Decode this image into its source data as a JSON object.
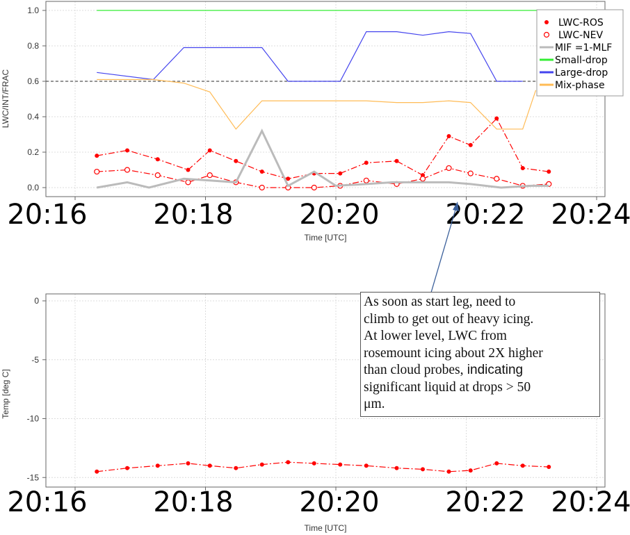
{
  "chart_data": [
    {
      "type": "line",
      "xlabel": "Time [UTC]",
      "ylabel": "LWC/INT/FRAC",
      "xlim": [
        "20:16",
        "20:24"
      ],
      "ylim": [
        0.0,
        1.0
      ],
      "x_ticks": [
        "20:16",
        "20:18",
        "20:20",
        "20:22",
        "20:24"
      ],
      "y_ticks": [
        "0.0",
        "0.2",
        "0.4",
        "0.6",
        "0.8",
        "1.0"
      ],
      "reference_line": 0.6,
      "legend_position": "top-right",
      "series": [
        {
          "name": "LWC-ROS",
          "color": "#ff0000",
          "marker": "filled-circle",
          "style": "dash-dot",
          "x": [
            "20:16:20",
            "20:16:48",
            "20:17:16",
            "20:17:44",
            "20:18:04",
            "20:18:28",
            "20:18:52",
            "20:19:16",
            "20:19:40",
            "20:20:04",
            "20:20:28",
            "20:20:56",
            "20:21:20",
            "20:21:44",
            "20:22:04",
            "20:22:28",
            "20:22:52",
            "20:23:16"
          ],
          "values": [
            0.18,
            0.21,
            0.16,
            0.1,
            0.21,
            0.15,
            0.09,
            0.05,
            0.08,
            0.08,
            0.14,
            0.15,
            0.07,
            0.29,
            0.24,
            0.39,
            0.11,
            0.09
          ]
        },
        {
          "name": "LWC-NEV",
          "color": "#ff0000",
          "marker": "open-circle",
          "style": "dash-dot",
          "x": [
            "20:16:20",
            "20:16:48",
            "20:17:16",
            "20:17:44",
            "20:18:04",
            "20:18:28",
            "20:18:52",
            "20:19:16",
            "20:19:40",
            "20:20:04",
            "20:20:28",
            "20:20:56",
            "20:21:20",
            "20:21:44",
            "20:22:04",
            "20:22:28",
            "20:22:52",
            "20:23:16"
          ],
          "values": [
            0.09,
            0.1,
            0.07,
            0.03,
            0.07,
            0.03,
            0.0,
            0.0,
            0.0,
            0.01,
            0.04,
            0.02,
            0.05,
            0.11,
            0.08,
            0.05,
            0.01,
            0.02
          ]
        },
        {
          "name": "MIF =1-MLF",
          "color": "#bbbbbb",
          "style": "solid",
          "x": [
            "20:16:20",
            "20:16:48",
            "20:17:08",
            "20:17:40",
            "20:18:04",
            "20:18:28",
            "20:18:52",
            "20:19:16",
            "20:19:40",
            "20:20:00",
            "20:20:28",
            "20:20:52",
            "20:21:20",
            "20:21:44",
            "20:22:04",
            "20:22:32",
            "20:23:00",
            "20:23:16"
          ],
          "values": [
            0.0,
            0.03,
            0.0,
            0.05,
            0.04,
            0.03,
            0.32,
            0.01,
            0.09,
            0.01,
            0.02,
            0.03,
            0.03,
            0.03,
            0.02,
            0.0,
            0.01,
            0.01
          ]
        },
        {
          "name": "Small-drop",
          "color": "#33ee33",
          "style": "solid",
          "x": [
            "20:16:20",
            "20:23:20"
          ],
          "values": [
            1.0,
            1.0
          ]
        },
        {
          "name": "Large-drop",
          "color": "#4444ee",
          "style": "solid",
          "x": [
            "20:16:20",
            "20:17:12",
            "20:17:40",
            "20:18:52",
            "20:19:16",
            "20:20:04",
            "20:20:28",
            "20:20:56",
            "20:21:20",
            "20:21:44",
            "20:22:04",
            "20:22:28",
            "20:22:52"
          ],
          "values": [
            0.65,
            0.61,
            0.79,
            0.79,
            0.6,
            0.6,
            0.88,
            0.88,
            0.86,
            0.88,
            0.87,
            0.6,
            0.6
          ]
        },
        {
          "name": "Mix-phase",
          "color": "#ffbb55",
          "style": "solid",
          "x": [
            "20:16:20",
            "20:17:12",
            "20:17:40",
            "20:18:04",
            "20:18:28",
            "20:18:52",
            "20:20:28",
            "20:20:56",
            "20:21:20",
            "20:21:44",
            "20:22:04",
            "20:22:28",
            "20:22:52",
            "20:23:04"
          ],
          "values": [
            0.61,
            0.61,
            0.59,
            0.54,
            0.33,
            0.49,
            0.49,
            0.48,
            0.48,
            0.49,
            0.48,
            0.33,
            0.33,
            0.55
          ]
        }
      ]
    },
    {
      "type": "line",
      "xlabel": "Time [UTC]",
      "ylabel": "Temp [deg C]",
      "xlim": [
        "20:16",
        "20:24"
      ],
      "ylim": [
        -15.5,
        0.5
      ],
      "x_ticks": [
        "20:16",
        "20:18",
        "20:20",
        "20:22",
        "20:24"
      ],
      "y_ticks": [
        "0",
        "-5",
        "-10",
        "-15"
      ],
      "series": [
        {
          "name": "Temp",
          "color": "#ff0000",
          "marker": "filled-circle",
          "style": "dash-dot",
          "x": [
            "20:16:20",
            "20:16:48",
            "20:17:16",
            "20:17:44",
            "20:18:04",
            "20:18:28",
            "20:18:52",
            "20:19:16",
            "20:19:40",
            "20:20:04",
            "20:20:28",
            "20:20:56",
            "20:21:20",
            "20:21:44",
            "20:22:04",
            "20:22:28",
            "20:22:52",
            "20:23:16"
          ],
          "values": [
            -14.5,
            -14.2,
            -14.0,
            -13.8,
            -14.0,
            -14.2,
            -13.9,
            -13.7,
            -13.8,
            -13.9,
            -14.0,
            -14.2,
            -14.3,
            -14.5,
            -14.4,
            -13.8,
            -14.0,
            -14.1
          ]
        }
      ]
    }
  ],
  "annotation": {
    "line1": "As soon as start leg, need to",
    "line2": "climb to get out of heavy icing.",
    "line3": "At lower level, LWC from",
    "line4": "rosemount icing about 2X higher",
    "line5a": "than cloud probes,",
    "line5b": " indicating",
    "line6": "significant liquid at drops > 50",
    "line7": "μm."
  },
  "colors": {
    "arrow": "#3a5f9a",
    "dashed_reference": "#555555",
    "grid": "#dddddd"
  }
}
